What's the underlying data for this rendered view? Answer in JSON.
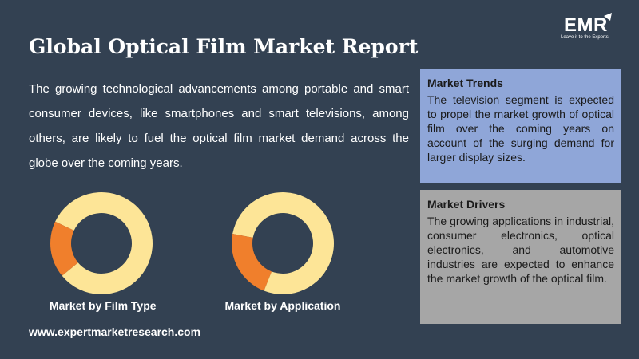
{
  "header": {
    "title": "Global Optical Film Market Report",
    "logo_text": "EMR",
    "logo_tagline": "Leave it to the Experts!"
  },
  "intro": {
    "text": "The growing technological advancements among portable and smart consumer devices, like smartphones and smart televisions, among others, are likely to fuel the optical film market demand across the globe over the coming years."
  },
  "charts": [
    {
      "label": "Market by Film Type",
      "segments": [
        0.82,
        0.18
      ],
      "colors": [
        "#fde597",
        "#f07f2c"
      ]
    },
    {
      "label": "Market by Application",
      "segments": [
        0.78,
        0.22
      ],
      "colors": [
        "#fde597",
        "#f07f2c"
      ]
    }
  ],
  "market_trends": {
    "heading": "Market Trends",
    "text": "The television segment is expected to propel the market growth of optical film over the coming years on account of the surging demand for larger display sizes."
  },
  "market_drivers": {
    "heading": "Market Drivers",
    "text": "The growing applications in industrial, consumer electronics, optical electronics, and automotive industries are expected to enhance the market growth of the optical film."
  },
  "footer": {
    "website": "www.expertmarketresearch.com"
  },
  "colors": {
    "background": "#334152",
    "trends_box": "#8fa6d8",
    "drivers_box": "#a6a6a6",
    "donut_main": "#fde597",
    "donut_accent": "#f07f2c"
  }
}
